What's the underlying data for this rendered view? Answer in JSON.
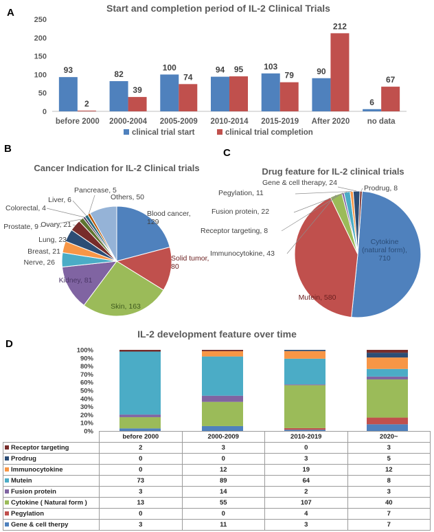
{
  "panels": {
    "a": "A",
    "b": "B",
    "c": "C",
    "d": "D"
  },
  "chart_data": [
    {
      "type": "bar",
      "title": "Start and completion period of IL-2 Clinical Trials",
      "categories": [
        "before 2000",
        "2000-2004",
        "2005-2009",
        "2010-2014",
        "2015-2019",
        "After 2020",
        "no data"
      ],
      "series": [
        {
          "name": "clinical trial start",
          "values": [
            93,
            82,
            100,
            94,
            103,
            90,
            6
          ],
          "color": "#4f81bd"
        },
        {
          "name": "clinical trial completion",
          "values": [
            2,
            39,
            74,
            95,
            79,
            212,
            67
          ],
          "color": "#c0504d"
        }
      ],
      "ylim": [
        0,
        250
      ],
      "yticks": [
        "0",
        "50",
        "100",
        "150",
        "200",
        "250"
      ],
      "legend": "bottom"
    },
    {
      "type": "pie",
      "title": "Cancer Indication for IL-2 Clinical trials",
      "slices": [
        {
          "label": "Blood cancer, 129",
          "value": 129,
          "color": "#4f81bd"
        },
        {
          "label": "Solid tumor, 80",
          "value": 80,
          "color": "#c0504d"
        },
        {
          "label": "Skin, 163",
          "value": 163,
          "color": "#9bbb59"
        },
        {
          "label": "Kidney, 81",
          "value": 81,
          "color": "#8064a2"
        },
        {
          "label": "Nerve, 26",
          "value": 26,
          "color": "#4bacc6"
        },
        {
          "label": "Breast, 21",
          "value": 21,
          "color": "#f79646"
        },
        {
          "label": "Lung, 23",
          "value": 23,
          "color": "#2c4d75"
        },
        {
          "label": "Ovary, 21",
          "value": 21,
          "color": "#772c2a"
        },
        {
          "label": "Prostate, 9",
          "value": 9,
          "color": "#5f7530"
        },
        {
          "label": "Colorectal, 4",
          "value": 4,
          "color": "#4d3b62"
        },
        {
          "label": "Liver, 6",
          "value": 6,
          "color": "#276a7c"
        },
        {
          "label": "Pancrease, 5",
          "value": 5,
          "color": "#b65708"
        },
        {
          "label": "Others, 50",
          "value": 50,
          "color": "#95b3d7"
        }
      ]
    },
    {
      "type": "pie",
      "title": "Drug feature for IL-2 clinical trials",
      "slices": [
        {
          "label": "Cytokine (natural form), 710",
          "value": 710,
          "color": "#4f81bd"
        },
        {
          "label": "Mutein, 580",
          "value": 580,
          "color": "#c0504d"
        },
        {
          "label": "Immunocytokine, 43",
          "value": 43,
          "color": "#9bbb59"
        },
        {
          "label": "Receptor targeting, 8",
          "value": 8,
          "color": "#8064a2"
        },
        {
          "label": "Fusion protein, 22",
          "value": 22,
          "color": "#4bacc6"
        },
        {
          "label": "Pegylation, 11",
          "value": 11,
          "color": "#f79646"
        },
        {
          "label": "Gene & cell therapy, 24",
          "value": 24,
          "color": "#2c4d75"
        },
        {
          "label": "Prodrug, 8",
          "value": 8,
          "color": "#772c2a"
        }
      ]
    },
    {
      "type": "bar",
      "stacked": "percent",
      "title": "IL-2 development feature over time",
      "categories": [
        "before 2000",
        "2000-2009",
        "2010-2019",
        "2020~"
      ],
      "yticks": [
        "0%",
        "10%",
        "20%",
        "30%",
        "40%",
        "50%",
        "60%",
        "70%",
        "80%",
        "90%",
        "100%"
      ],
      "series": [
        {
          "name": "Receptor targeting",
          "values": [
            2,
            3,
            0,
            3
          ],
          "color": "#772c2a"
        },
        {
          "name": "Prodrug",
          "values": [
            0,
            0,
            3,
            5
          ],
          "color": "#2c4d75"
        },
        {
          "name": "Immunocytokine",
          "values": [
            0,
            12,
            19,
            12
          ],
          "color": "#f79646"
        },
        {
          "name": "Mutein",
          "values": [
            73,
            89,
            64,
            8
          ],
          "color": "#4bacc6"
        },
        {
          "name": "Fusion protein",
          "values": [
            3,
            14,
            2,
            3
          ],
          "color": "#8064a2"
        },
        {
          "name": "Cytokine ( Natural form )",
          "values": [
            13,
            55,
            107,
            40
          ],
          "color": "#9bbb59"
        },
        {
          "name": "Pegylation",
          "values": [
            0,
            0,
            4,
            7
          ],
          "color": "#c0504d"
        },
        {
          "name": "Gene & cell therpy",
          "values": [
            3,
            11,
            3,
            7
          ],
          "color": "#4f81bd"
        }
      ]
    }
  ]
}
